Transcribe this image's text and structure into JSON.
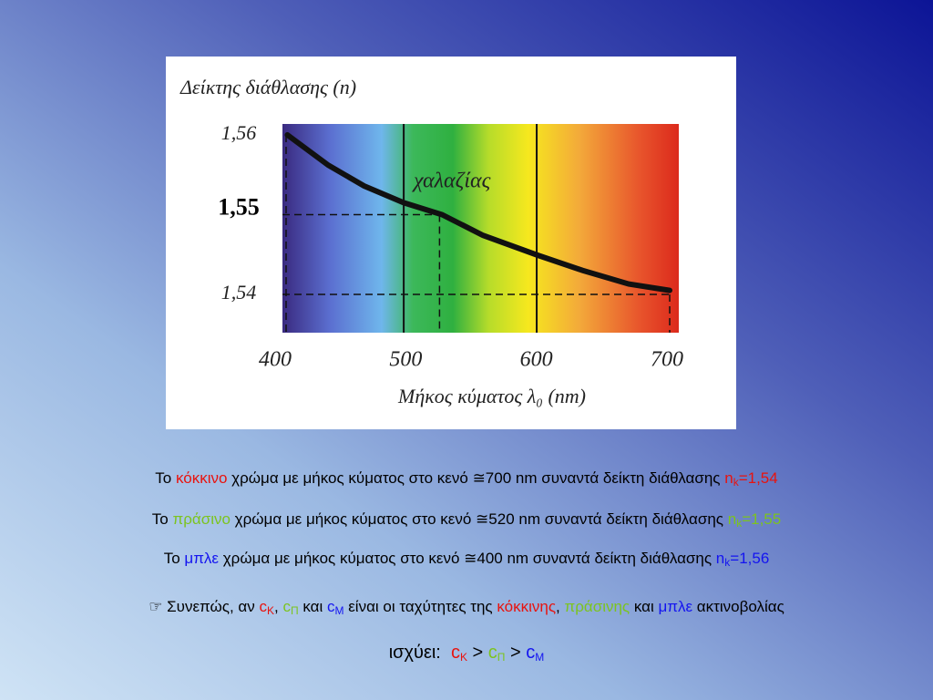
{
  "chart_data": {
    "type": "line",
    "ylabel": "Δείκτης διάθλασης (n)",
    "xlabel": "Μήκος κύματος λ₀ (nm)",
    "annotation": "χαλαζίας",
    "x": [
      401,
      433,
      461,
      492,
      522,
      554,
      597,
      632,
      668,
      700
    ],
    "series": [
      {
        "name": "χαλαζίας",
        "color": "#111111",
        "values": [
          1.56,
          1.5562,
          1.5536,
          1.5515,
          1.55,
          1.5474,
          1.5449,
          1.543,
          1.5413,
          1.5405
        ]
      }
    ],
    "xlim": [
      400,
      700
    ],
    "xticks": [
      400,
      500,
      600,
      700
    ],
    "ylim": [
      1.54,
      1.56
    ],
    "yticks": [
      {
        "value": 1.54,
        "label": "1,54"
      },
      {
        "value": 1.55,
        "label": "1,55"
      },
      {
        "value": 1.56,
        "label": "1,56"
      }
    ],
    "vlines": [
      492,
      596
    ],
    "guides": [
      {
        "x": 520,
        "y": 1.55
      },
      {
        "x": 700,
        "y": 1.54
      },
      {
        "x": 400,
        "y": 1.56
      }
    ],
    "grid": false
  },
  "text_lines": [
    [
      {
        "text": "Το "
      },
      {
        "text": "κόκκινο",
        "color": "#e8130e"
      },
      {
        "text": " χρώμα με μήκος κύματος στο κενό ≅700 nm συναντά δείκτη διάθλασης "
      },
      {
        "text": "n",
        "color": "#e8130e"
      },
      {
        "text": "k",
        "color": "#e8130e",
        "sub": true
      },
      {
        "text": "=1,54",
        "color": "#e8130e"
      }
    ],
    [
      {
        "text": "Το "
      },
      {
        "text": "πράσινο",
        "color": "#7cc41e"
      },
      {
        "text": " χρώμα με μήκος κύματος στο κενό ≅520 nm συναντά δείκτη διάθλασης "
      },
      {
        "text": "n",
        "color": "#7cc41e"
      },
      {
        "text": "k",
        "color": "#7cc41e",
        "sub": true
      },
      {
        "text": "=1,55",
        "color": "#7cc41e"
      }
    ],
    [
      {
        "text": "Το "
      },
      {
        "text": "μπλε",
        "color": "#1414f0"
      },
      {
        "text": " χρώμα με μήκος κύματος στο κενό ≅400 nm συναντά δείκτη διάθλασης "
      },
      {
        "text": "n",
        "color": "#1414f0"
      },
      {
        "text": "k",
        "color": "#1414f0",
        "sub": true
      },
      {
        "text": "=1,56",
        "color": "#1414f0"
      }
    ],
    [
      {
        "text": "☞ Συνεπώς, αν "
      },
      {
        "text": "c",
        "color": "#e8130e"
      },
      {
        "text": "K",
        "color": "#e8130e",
        "sub": true
      },
      {
        "text": ", "
      },
      {
        "text": "c",
        "color": "#7cc41e"
      },
      {
        "text": "Π",
        "color": "#7cc41e",
        "sub": true
      },
      {
        "text": " και "
      },
      {
        "text": "c",
        "color": "#1414f0"
      },
      {
        "text": "M",
        "color": "#1414f0",
        "sub": true
      },
      {
        "text": " είναι οι ταχύτητες της "
      },
      {
        "text": "κόκκινης",
        "color": "#e8130e"
      },
      {
        "text": ", "
      },
      {
        "text": "πράσινης",
        "color": "#7cc41e"
      },
      {
        "text": " και "
      },
      {
        "text": "μπλε",
        "color": "#1414f0"
      },
      {
        "text": " ακτινοβολίας"
      }
    ],
    [
      {
        "text": "ισχύει:  "
      },
      {
        "text": "c",
        "color": "#e8130e"
      },
      {
        "text": "K",
        "color": "#e8130e",
        "sub": true
      },
      {
        "text": " > "
      },
      {
        "text": "c",
        "color": "#7cc41e"
      },
      {
        "text": "Π",
        "color": "#7cc41e",
        "sub": true
      },
      {
        "text": " > "
      },
      {
        "text": "c",
        "color": "#1414f0"
      },
      {
        "text": "M",
        "color": "#1414f0",
        "sub": true
      }
    ]
  ]
}
